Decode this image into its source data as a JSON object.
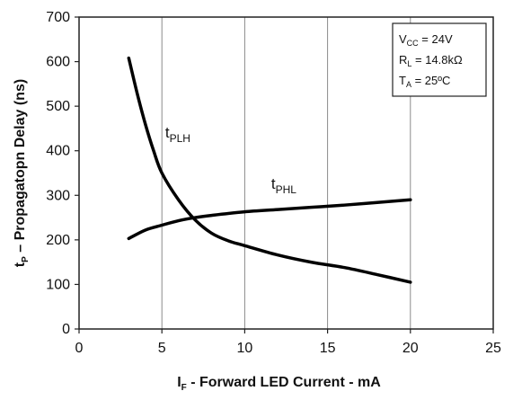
{
  "chart_data": {
    "type": "line",
    "title": "",
    "xlabel": {
      "main": "I",
      "sub": "F",
      "rest": " - Forward LED Current - mA"
    },
    "ylabel": {
      "main": "t",
      "sub": "P",
      "rest": " – Propagatopn Delay  (ns)"
    },
    "xlim": [
      0,
      25
    ],
    "ylim": [
      0,
      700
    ],
    "x_ticks": [
      0,
      5,
      10,
      15,
      20,
      25
    ],
    "y_ticks": [
      0,
      100,
      200,
      300,
      400,
      500,
      600,
      700
    ],
    "grid": {
      "vertical": true,
      "horizontal": false
    },
    "series": [
      {
        "name": "tPLH",
        "label": {
          "main": "t",
          "sub": "PLH"
        },
        "label_at": [
          5.2,
          430
        ],
        "x": [
          3,
          3.5,
          4,
          4.5,
          5,
          6,
          7,
          8,
          9,
          10,
          12,
          14,
          16,
          18,
          20
        ],
        "y": [
          608,
          530,
          460,
          400,
          350,
          290,
          245,
          215,
          198,
          187,
          166,
          150,
          138,
          122,
          105
        ]
      },
      {
        "name": "tPHL",
        "label": {
          "main": "t",
          "sub": "PHL"
        },
        "label_at": [
          11.6,
          315
        ],
        "x": [
          3,
          4,
          5,
          6,
          7,
          8,
          10,
          12,
          14,
          16,
          18,
          20
        ],
        "y": [
          203,
          222,
          233,
          243,
          250,
          255,
          263,
          268,
          273,
          278,
          284,
          290
        ]
      }
    ],
    "annotations": [
      {
        "main": "V",
        "sub": "CC",
        "rest": " = 24V"
      },
      {
        "main": "R",
        "sub": "L",
        "rest": " = 14.8kΩ"
      },
      {
        "main": "T",
        "sub": "A",
        "rest": " = 25ºC"
      }
    ],
    "legend": "none",
    "annotation_placement": "top-right"
  }
}
